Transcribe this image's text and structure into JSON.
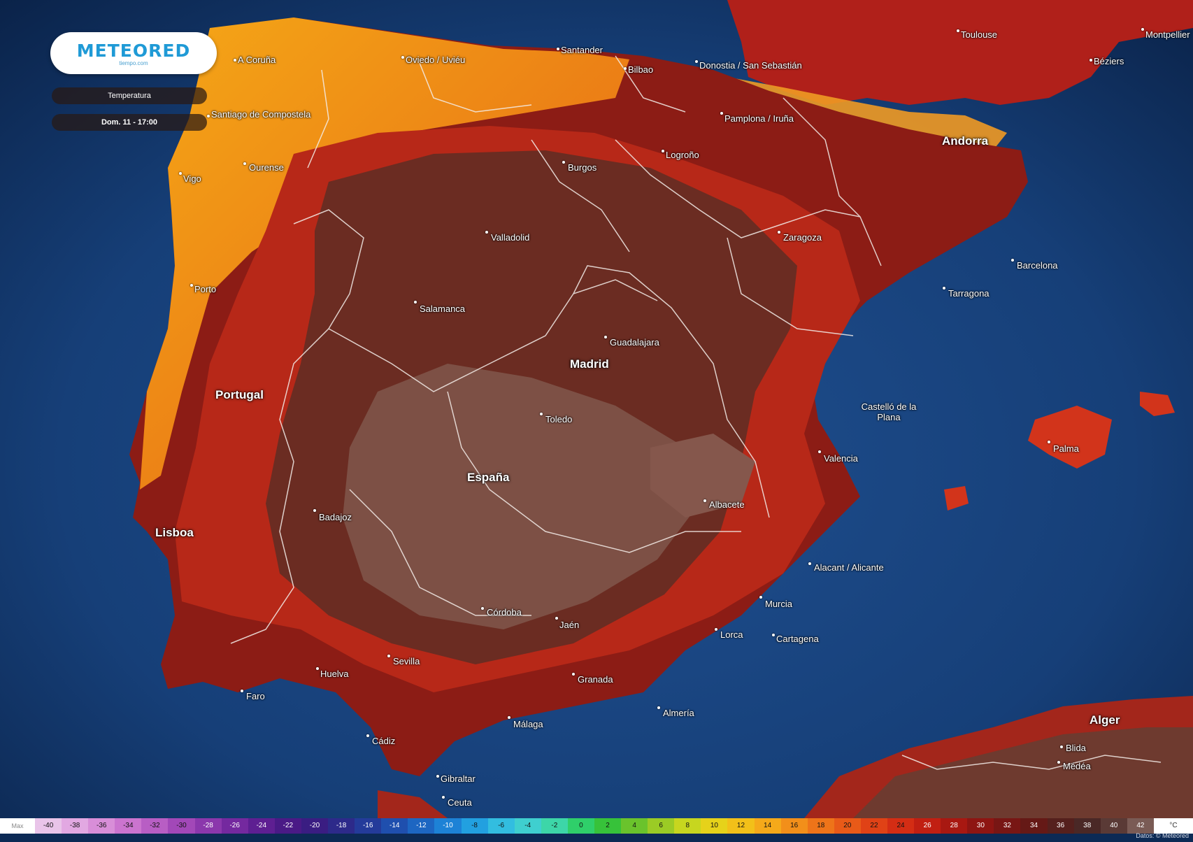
{
  "logo": {
    "brand": "METEORED",
    "sub": "tiempo.com"
  },
  "panel": {
    "variable": "Temperatura",
    "time": "Dom. 11 - 17:00"
  },
  "regions": {
    "portugal": "Portugal",
    "espana": "España",
    "madrid": "Madrid",
    "lisboa": "Lisboa",
    "andorra": "Andorra",
    "alger": "Alger"
  },
  "cities": {
    "coruna": "A Coruña",
    "oviedo": "Oviedo / Uviéu",
    "santander": "Santander",
    "bilbao": "Bilbao",
    "donostia": "Donostia / San Sebastián",
    "toulouse": "Toulouse",
    "montpellier": "Montpellier",
    "beziers": "Béziers",
    "santiago": "Santiago de Compostela",
    "pamplona": "Pamplona / Iruña",
    "ourense": "Ourense",
    "vigo": "Vigo",
    "burgos": "Burgos",
    "logrono": "Logroño",
    "valladolid": "Valladolid",
    "zaragoza": "Zaragoza",
    "barcelona": "Barcelona",
    "tarragona": "Tarragona",
    "porto": "Porto",
    "salamanca": "Salamanca",
    "guadalajara": "Guadalajara",
    "toledo": "Toledo",
    "castellon": "Castelló de la Plana",
    "valencia": "Valencia",
    "palma": "Palma",
    "albacete": "Albacete",
    "badajoz": "Badajoz",
    "alicante": "Alacant / Alicante",
    "cordoba": "Córdoba",
    "jaen": "Jaén",
    "murcia": "Murcia",
    "lorca": "Lorca",
    "cartagena": "Cartagena",
    "sevilla": "Sevilla",
    "huelva": "Huelva",
    "faro": "Faro",
    "granada": "Granada",
    "almeria": "Almería",
    "malaga": "Málaga",
    "cadiz": "Cádiz",
    "gibraltar": "Gibraltar",
    "ceuta": "Ceuta",
    "blida": "Blida",
    "medea": "Médéa"
  },
  "legend": {
    "unit_left": "Max",
    "unit_right": "°C",
    "values": [
      "-40",
      "-38",
      "-36",
      "-34",
      "-32",
      "-30",
      "-28",
      "-26",
      "-24",
      "-22",
      "-20",
      "-18",
      "-16",
      "-14",
      "-12",
      "-10",
      "-8",
      "-6",
      "-4",
      "-2",
      "0",
      "2",
      "4",
      "6",
      "8",
      "10",
      "12",
      "14",
      "16",
      "18",
      "20",
      "22",
      "24",
      "26",
      "28",
      "30",
      "32",
      "34",
      "36",
      "38",
      "40",
      "42"
    ],
    "colors": [
      "#e9c4e9",
      "#e2a8e2",
      "#d88ed8",
      "#cb74cf",
      "#b85ec4",
      "#a248b8",
      "#8b37ac",
      "#74299f",
      "#5e1f92",
      "#4a1a86",
      "#3a1d82",
      "#2d2a8a",
      "#243b9a",
      "#1f4fae",
      "#1d66c2",
      "#1d82d6",
      "#22a0e0",
      "#32bde0",
      "#3fcfcf",
      "#3dd6a8",
      "#2fcf6a",
      "#37c23a",
      "#6ac32c",
      "#9bcb25",
      "#c7d61f",
      "#e6d21a",
      "#f2c019",
      "#f5a91a",
      "#f28f1a",
      "#ee7419",
      "#e85a18",
      "#e04216",
      "#d42d14",
      "#c11f12",
      "#a81811",
      "#8e1512",
      "#781614",
      "#651916",
      "#55201d",
      "#4a2826",
      "#5a3a36",
      "#7a5b55"
    ],
    "credit": "Datos: © Meteored"
  }
}
